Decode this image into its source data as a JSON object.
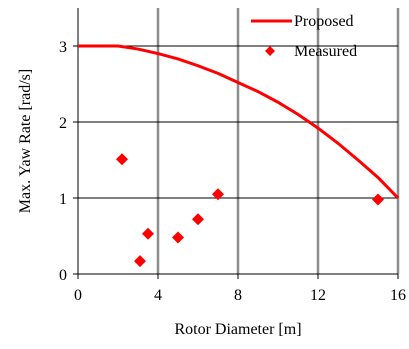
{
  "chart_data": {
    "type": "scatter",
    "xlabel": "Rotor Diameter [m]",
    "ylabel": "Max. Yaw Rate [rad/s]",
    "xlim": [
      0,
      16
    ],
    "ylim": [
      0,
      3.5
    ],
    "x_ticks": [
      0,
      4,
      8,
      12,
      16
    ],
    "y_ticks": [
      0,
      1,
      2,
      3
    ],
    "x_tick_labels": [
      "0",
      "4",
      "8",
      "12",
      "16"
    ],
    "y_tick_labels": [
      "0",
      "1",
      "2",
      "3"
    ],
    "grid": "partial",
    "legend_position": "top-right",
    "series": [
      {
        "name": "Proposed",
        "kind": "line",
        "color": "#ff0000",
        "x": [
          0,
          1,
          2,
          3,
          4,
          5,
          6,
          7,
          8,
          9,
          10,
          11,
          12,
          13,
          14,
          15,
          16
        ],
        "y": [
          3.0,
          3.0,
          3.0,
          2.96,
          2.9,
          2.83,
          2.74,
          2.64,
          2.52,
          2.4,
          2.26,
          2.1,
          1.92,
          1.72,
          1.5,
          1.27,
          1.0
        ]
      },
      {
        "name": "Measured",
        "kind": "scatter",
        "color": "#ff0000",
        "marker": "diamond",
        "x": [
          2.2,
          3.1,
          3.5,
          5.0,
          6.0,
          7.0,
          15.0
        ],
        "y": [
          1.51,
          0.17,
          0.53,
          0.48,
          0.72,
          1.05,
          0.98
        ]
      }
    ]
  }
}
